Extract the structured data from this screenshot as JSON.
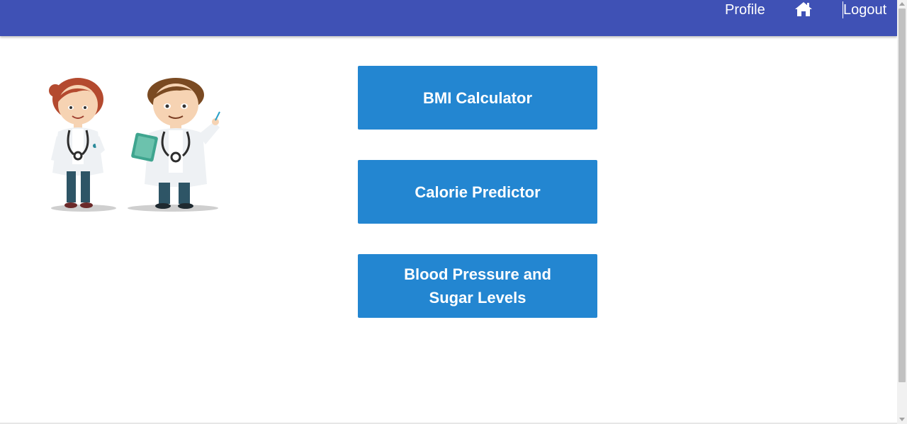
{
  "navbar": {
    "profile_label": "Profile",
    "home_icon": "home-icon",
    "logout_label": "Logout",
    "background_color": "#3f51b5"
  },
  "illustration": {
    "icon": "doctors-illustration"
  },
  "features": {
    "bmi_label": "BMI Calculator",
    "calorie_label": "Calorie Predictor",
    "bp_line1": "Blood Pressure and",
    "bp_line2": "Sugar Levels",
    "button_color": "#2386d1"
  }
}
